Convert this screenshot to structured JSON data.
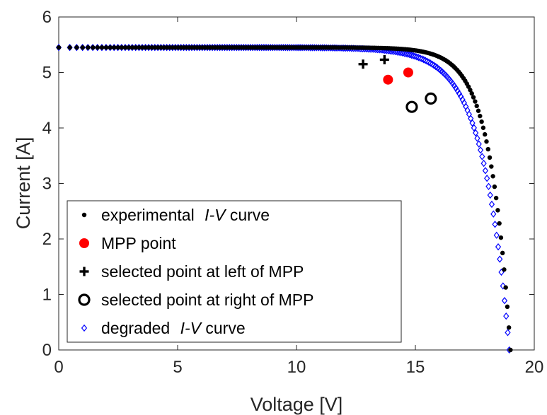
{
  "chart_data": {
    "type": "scatter",
    "xlabel": "Voltage [V]",
    "ylabel": "Current [A]",
    "xlim": [
      0,
      20
    ],
    "ylim": [
      0,
      6
    ],
    "xticks": [
      0,
      5,
      10,
      15,
      20
    ],
    "yticks": [
      0,
      1,
      2,
      3,
      4,
      5,
      6
    ],
    "grid": false,
    "legend_position": "bottom-left",
    "legend": [
      {
        "key": "experimental",
        "prefix": "experimental ",
        "italic": "I-V",
        "suffix": " curve"
      },
      {
        "key": "mpp",
        "prefix": "MPP point",
        "italic": "",
        "suffix": ""
      },
      {
        "key": "left",
        "prefix": "selected point at left of MPP",
        "italic": "",
        "suffix": ""
      },
      {
        "key": "right",
        "prefix": "selected point at right of MPP",
        "italic": "",
        "suffix": ""
      },
      {
        "key": "degraded",
        "prefix": "degraded ",
        "italic": "I-V",
        "suffix": " curve"
      }
    ],
    "series": [
      {
        "key": "experimental",
        "marker": "dot",
        "color": "#000000",
        "params": {
          "isc": 5.45,
          "voc": 19.0,
          "n": 1.0
        }
      },
      {
        "key": "degraded",
        "marker": "diamond",
        "color": "#0000ff",
        "params": {
          "isc": 5.45,
          "voc": 18.95,
          "n": 1.3
        }
      },
      {
        "key": "mpp",
        "marker": "filled-circle",
        "color": "#ff0000",
        "points": [
          [
            14.7,
            5.0
          ],
          [
            13.85,
            4.87
          ]
        ]
      },
      {
        "key": "left",
        "marker": "plus",
        "color": "#000000",
        "points": [
          [
            13.7,
            5.23
          ],
          [
            12.8,
            5.15
          ]
        ]
      },
      {
        "key": "right",
        "marker": "open-circle",
        "color": "#000000",
        "points": [
          [
            15.65,
            4.53
          ],
          [
            14.85,
            4.38
          ]
        ]
      }
    ]
  }
}
